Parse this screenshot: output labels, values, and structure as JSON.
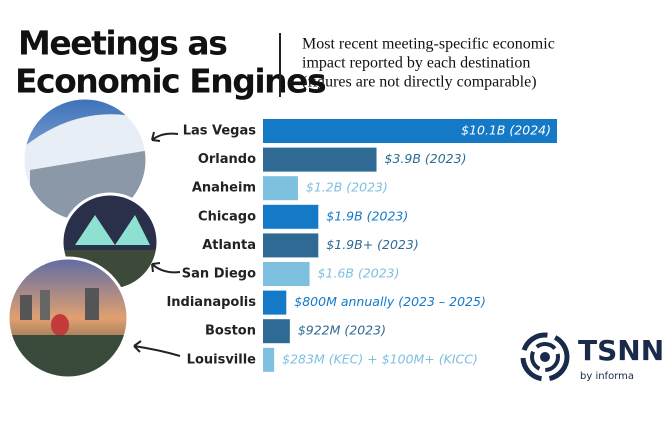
{
  "chart_data": {
    "type": "bar",
    "title_lines": [
      "Meetings as",
      "Economic Engines"
    ],
    "subtitle_lines": [
      "Most recent meeting-specific economic",
      "impact reported by each destination",
      "(figures are not directly comparable)"
    ],
    "categories": [
      "Las Vegas",
      "Orlando",
      "Anaheim",
      "Chicago",
      "Atlanta",
      "San Diego",
      "Indianapolis",
      "Boston",
      "Louisville"
    ],
    "values": [
      10.1,
      3.9,
      1.2,
      1.9,
      1.9,
      1.6,
      0.8,
      0.922,
      0.383
    ],
    "value_labels": [
      "$10.1B (2024)",
      "$3.9B (2023)",
      "$1.2B (2023)",
      "$1.9B (2023)",
      "$1.9B+ (2023)",
      "$1.6B (2023)",
      "$800M annually (2023 – 2025)",
      "$922M (2023)",
      "$283M (KEC) + $100M+ (KICC)"
    ],
    "colors": [
      "#1479c6",
      "#2e6a94",
      "#7ec0e0",
      "#1479c6",
      "#2e6a94",
      "#7ec0e0",
      "#1479c6",
      "#2e6a94",
      "#7ec0e0"
    ]
  },
  "logo": {
    "name": "TSNN",
    "byline": "by informa"
  }
}
